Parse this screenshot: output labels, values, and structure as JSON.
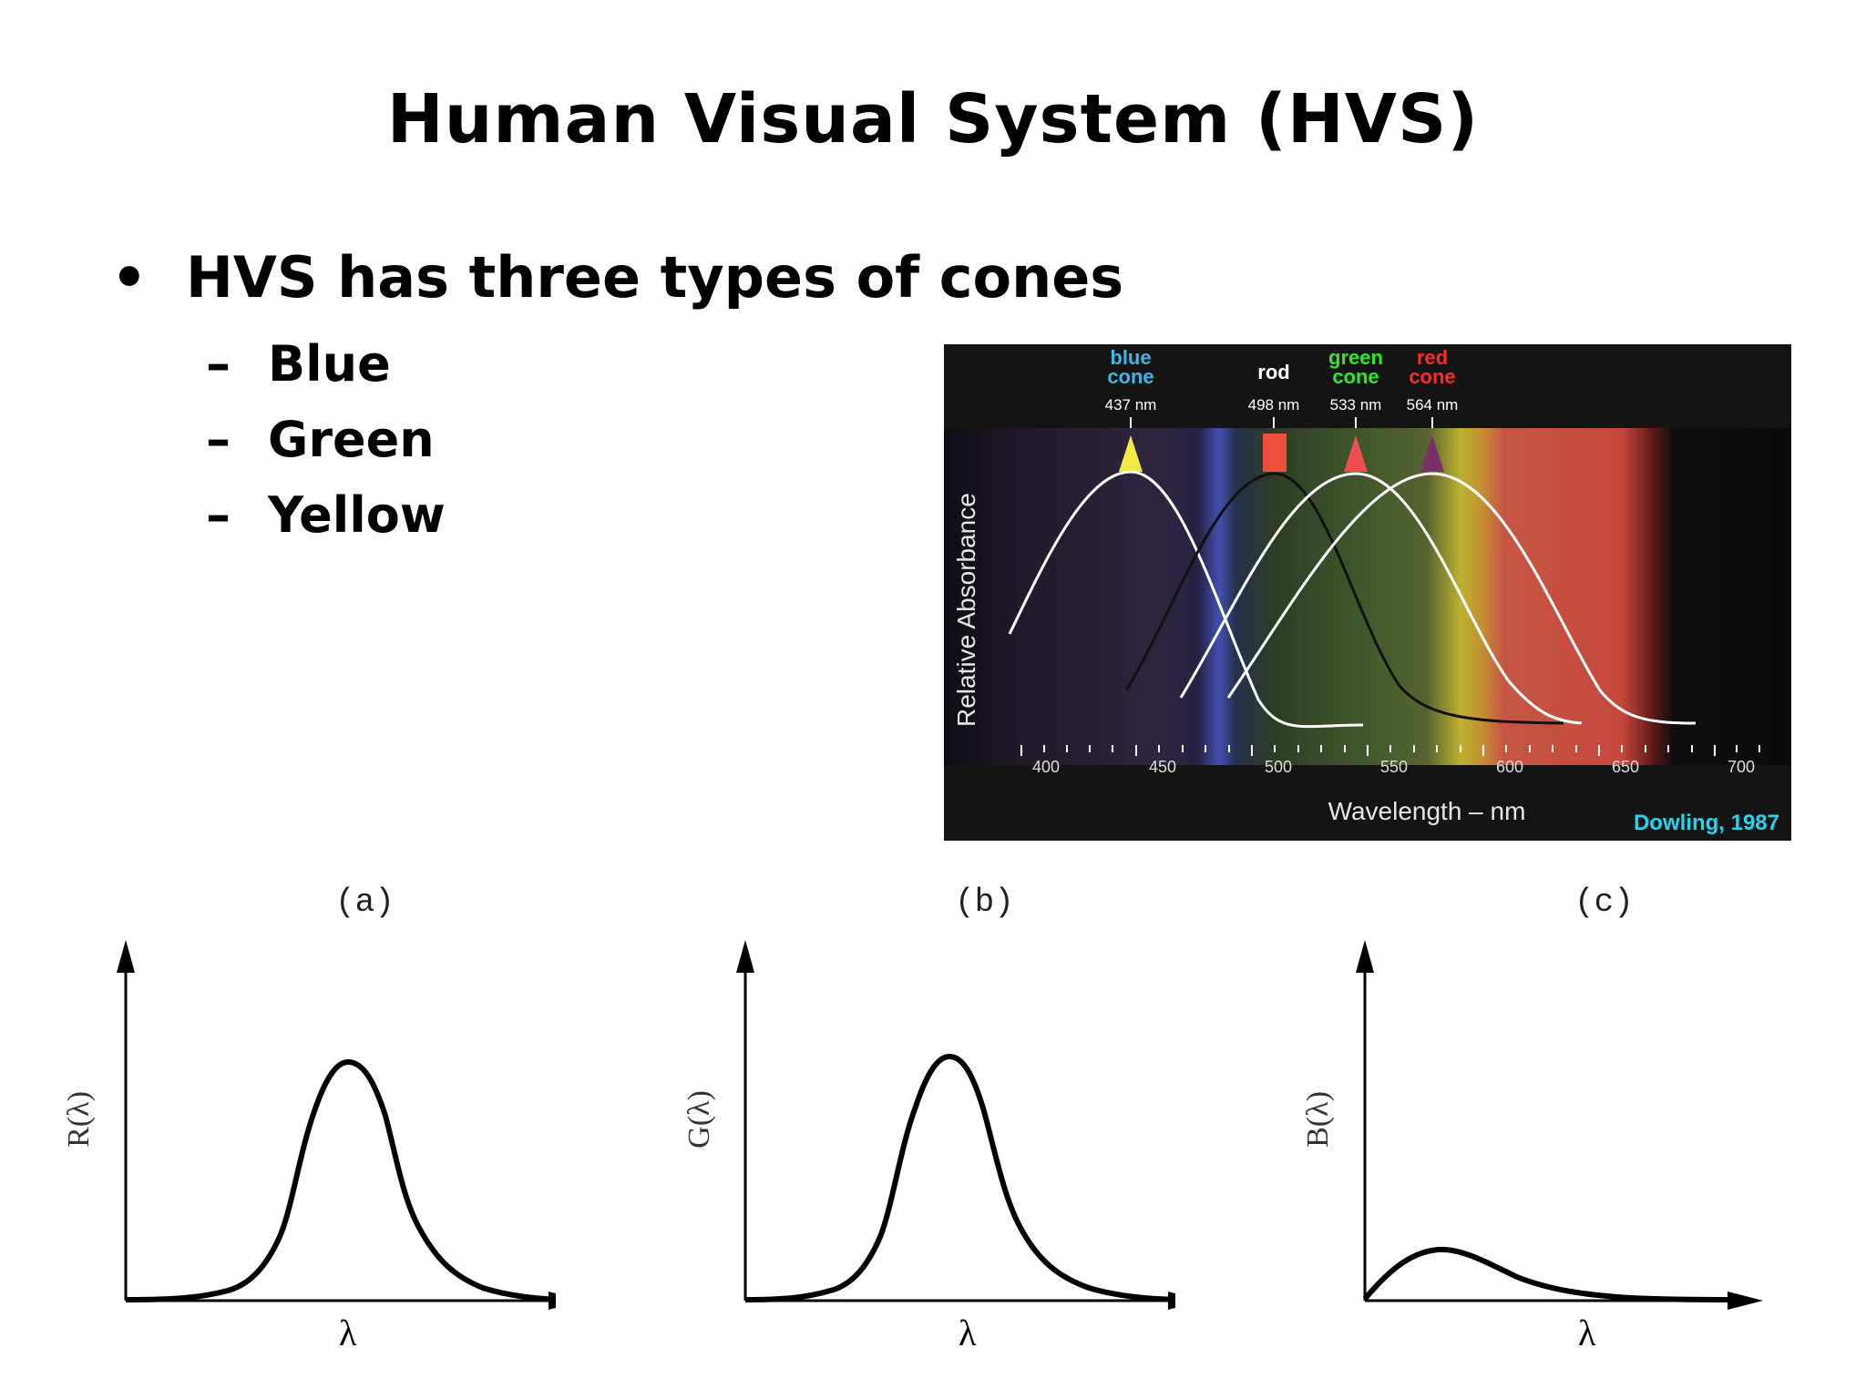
{
  "title": "Human Visual System (HVS)",
  "bullet": {
    "marker": "•",
    "text": "HVS has three types of cones"
  },
  "subitems": [
    {
      "marker": "–",
      "text": "Blue"
    },
    {
      "marker": "–",
      "text": "Green"
    },
    {
      "marker": "–",
      "text": "Yellow"
    }
  ],
  "spectrum_figure": {
    "pigments": [
      {
        "line1": "blue",
        "line2": "cone",
        "wavelength": "437 nm",
        "color": "#3fb6ea"
      },
      {
        "line1": "",
        "line2": "rod",
        "wavelength": "498 nm",
        "color": "#ffffff"
      },
      {
        "line1": "green",
        "line2": "cone",
        "wavelength": "533 nm",
        "color": "#2ee82e"
      },
      {
        "line1": "red",
        "line2": "cone",
        "wavelength": "564 nm",
        "color": "#ff2a2a"
      }
    ],
    "ylabel": "Relative Absorbance",
    "xlabel": "Wavelength – nm",
    "ticks": [
      "400",
      "450",
      "500",
      "550",
      "600",
      "650",
      "700"
    ],
    "credit": "Dowling, 1987",
    "credit_color": "#27d3ee"
  },
  "response_panels": [
    {
      "label": "(a)",
      "ylabel": "R(λ)",
      "xlabel": "λ"
    },
    {
      "label": "(b)",
      "ylabel": "G(λ)",
      "xlabel": "λ"
    },
    {
      "label": "(c)",
      "ylabel": "B(λ)",
      "xlabel": "λ"
    }
  ]
}
